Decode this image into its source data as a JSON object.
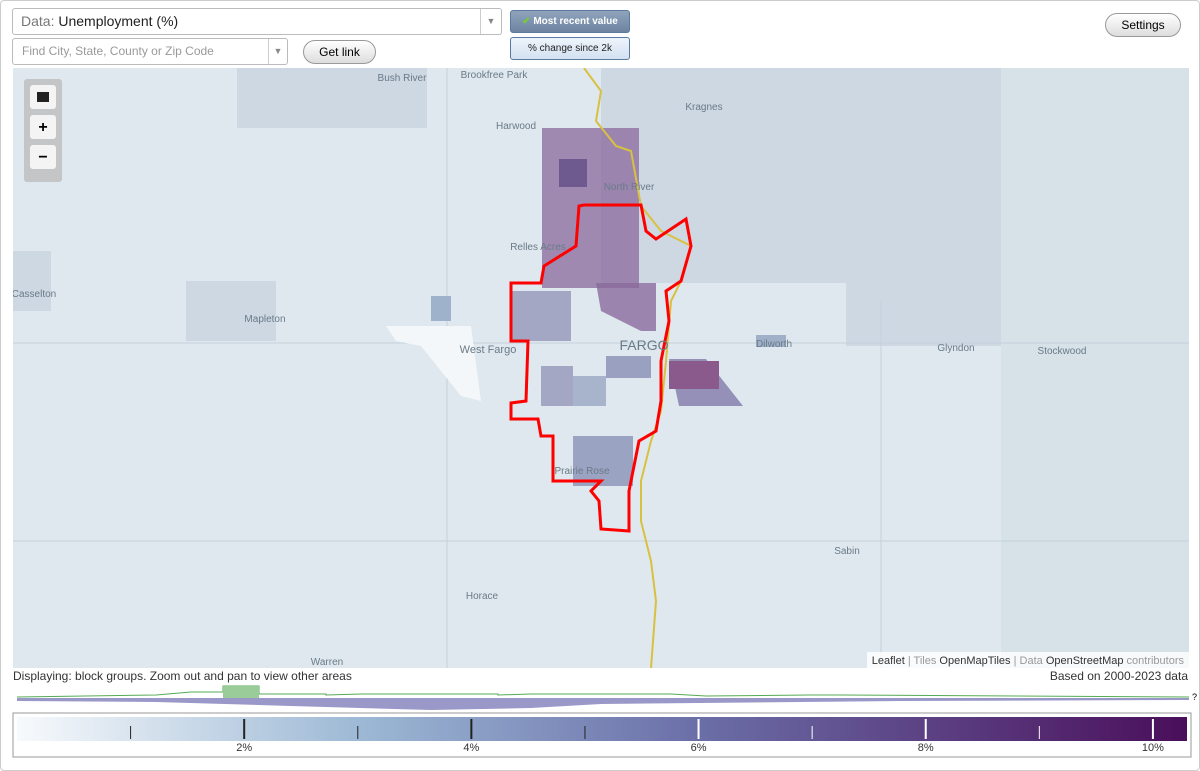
{
  "controls": {
    "data_label": "Data:",
    "data_value": "Unemployment (%)",
    "search_placeholder": "Find City, State, County or Zip Code",
    "get_link": "Get link",
    "most_recent": "Most recent value",
    "percent_change": "% change since 2k",
    "settings": "Settings"
  },
  "map": {
    "places": [
      "Bush River",
      "Brookfree Park",
      "Kragnes",
      "Harwood",
      "North River",
      "Relles Acres",
      "Casselton",
      "Mapleton",
      "West Fargo",
      "FARGO",
      "Dilworth",
      "Glyndon",
      "Stockwood",
      "Prairie Rose",
      "Sabin",
      "Horace",
      "Warren"
    ],
    "attribution": [
      "Leaflet",
      " | Tiles ",
      "OpenMapTiles",
      " | Data ",
      "OpenStreetMap",
      " contributors"
    ]
  },
  "status": {
    "displaying": "Displaying: block groups. Zoom out and pan to view other areas",
    "based_on": "Based on 2000-2023 data",
    "help": "?"
  },
  "legend": {
    "range": [
      0,
      10.3
    ],
    "ticks": [
      1,
      {
        "value": 2,
        "label": "2%"
      },
      3,
      {
        "value": 4,
        "label": "4%"
      },
      5,
      {
        "value": 6,
        "label": "6%"
      },
      7,
      {
        "value": 8,
        "label": "8%"
      },
      9,
      {
        "value": 10,
        "label": "10%"
      }
    ]
  }
}
